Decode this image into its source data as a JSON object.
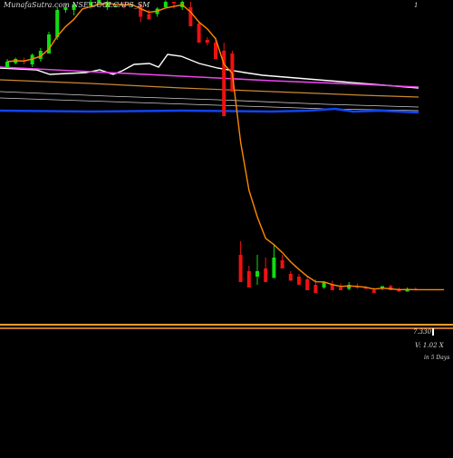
{
  "title": "MunafaSutra.com NSE COOLCAPS_SM",
  "top_right_tick": "1",
  "volume_label": "7.330",
  "volume_ratio": "V: 1.02 X",
  "days_label": "in 5 Days",
  "colors": {
    "background": "#000000",
    "bull": "#11dd11",
    "bear": "#ee1111",
    "ema_short": "#ff8800",
    "ema_long": "#cc8833",
    "line_white": "#ffffff",
    "line_magenta": "#ee44ee",
    "line_blue": "#1144ee",
    "line_grey": "#cccccc",
    "band": "#ff9933"
  },
  "chart_data": {
    "type": "candlestick",
    "series": [
      {
        "name": "candles",
        "values": [
          [
            168,
            172,
            168,
            174,
            167
          ],
          [
            171,
            174,
            170,
            175,
            169
          ],
          [
            173,
            172,
            170,
            175,
            170
          ],
          [
            170,
            177,
            168,
            178,
            166
          ],
          [
            174,
            180,
            172,
            182,
            171
          ],
          [
            178,
            192,
            178,
            194,
            176
          ],
          [
            190,
            210,
            188,
            212,
            186
          ],
          [
            210,
            212,
            208,
            214,
            206
          ],
          [
            210,
            214,
            206,
            216,
            204
          ],
          [
            222,
            226,
            222,
            226,
            222
          ],
          [
            213,
            216,
            211,
            218,
            210
          ],
          [
            215,
            218,
            213,
            218,
            212
          ],
          [
            212,
            216,
            210,
            217,
            210
          ],
          [
            212,
            213,
            212,
            214,
            211
          ],
          [
            214,
            213,
            211,
            216,
            209
          ],
          [
            214,
            214,
            212,
            215,
            212
          ],
          [
            214,
            205,
            201,
            215,
            200
          ],
          [
            207,
            203,
            205,
            210,
            202
          ],
          [
            207,
            211,
            205,
            212,
            205
          ],
          [
            212,
            216,
            212,
            217,
            210
          ],
          [
            216,
            215,
            211,
            216,
            210
          ],
          [
            212,
            216,
            210,
            217,
            210
          ],
          [
            212,
            198,
            202,
            216,
            198
          ],
          [
            200,
            186,
            198,
            201,
            184
          ],
          [
            188,
            186,
            184,
            190,
            180
          ],
          [
            186,
            174,
            180,
            190,
            170
          ],
          [
            180,
            132,
            180,
            186,
            128
          ],
          [
            178,
            150,
            176,
            180,
            148
          ],
          [
            30,
            10,
            12,
            40,
            0
          ],
          [
            18,
            6,
            10,
            22,
            0
          ],
          [
            14,
            18,
            8,
            30,
            0
          ],
          [
            20,
            10,
            14,
            28,
            2
          ],
          [
            13,
            28,
            14,
            38,
            4
          ],
          [
            26,
            20,
            22,
            30,
            20
          ],
          [
            16,
            11,
            14,
            18,
            10
          ],
          [
            14,
            8,
            12,
            16,
            4
          ],
          [
            12,
            4,
            10,
            14,
            2
          ],
          [
            8,
            2,
            8,
            12,
            0
          ],
          [
            6,
            10,
            5,
            10,
            1
          ],
          [
            8,
            4,
            7,
            11,
            1
          ],
          [
            6,
            4,
            4,
            9,
            2
          ],
          [
            5,
            8,
            4,
            10,
            1
          ],
          [
            7,
            6,
            5,
            9,
            1
          ],
          [
            6,
            5,
            5,
            7,
            3
          ],
          [
            4,
            2,
            3,
            6,
            1
          ],
          [
            5,
            7,
            4,
            7,
            2
          ],
          [
            7,
            4,
            5,
            8,
            3
          ],
          [
            5,
            3,
            4,
            6,
            2
          ],
          [
            3,
            5,
            4,
            6,
            2
          ],
          [
            5,
            4,
            4,
            6,
            2
          ]
        ]
      }
    ]
  }
}
